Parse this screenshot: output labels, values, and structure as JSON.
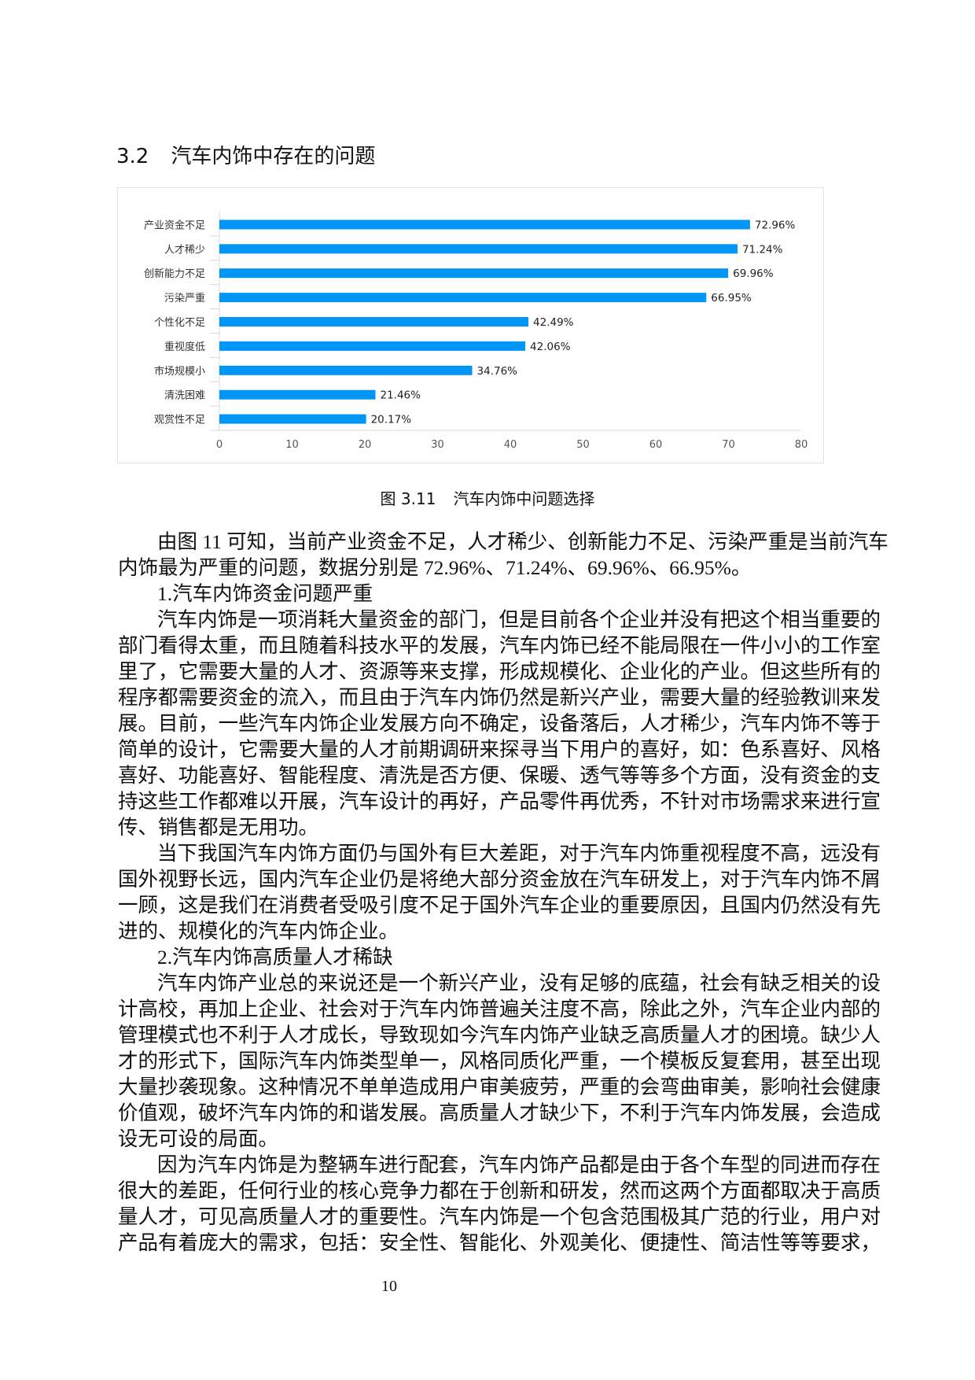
{
  "section": {
    "number": "3.2",
    "title": "汽车内饰中存在的问题"
  },
  "chart_data": {
    "type": "bar",
    "orientation": "horizontal",
    "categories": [
      "产业资金不足",
      "人才稀少",
      "创新能力不足",
      "污染严重",
      "个性化不足",
      "重视度低",
      "市场规模小",
      "清洗困难",
      "观赏性不足"
    ],
    "values": [
      72.96,
      71.24,
      69.96,
      66.95,
      42.49,
      42.06,
      34.76,
      21.46,
      20.17
    ],
    "data_labels": [
      "72.96%",
      "71.24%",
      "69.96%",
      "66.95%",
      "42.49%",
      "42.06%",
      "34.76%",
      "21.46%",
      "20.17%"
    ],
    "xlim": [
      0,
      80
    ],
    "x_ticks": [
      "0",
      "10",
      "20",
      "30",
      "40",
      "50",
      "60",
      "70",
      "80"
    ],
    "title": "",
    "xlabel": "",
    "ylabel": "",
    "grid": false,
    "bar_color": "#0096f5"
  },
  "caption": {
    "number": "图 3.11",
    "title": "汽车内饰中问题选择"
  },
  "paragraphs": [
    [
      "由图 11 可知，当前产业资金不足，人才稀少、创新能力不足、污染严重是当前汽车",
      "内饰最为严重的问题，数据分别是 72.96%、71.24%、69.96%、66.95%。"
    ],
    [
      "1.汽车内饰资金问题严重"
    ],
    [
      "汽车内饰是一项消耗大量资金的部门，但是目前各个企业并没有把这个相当重要的",
      "部门看得太重，而且随着科技水平的发展，汽车内饰已经不能局限在一件小小的工作室",
      "里了，它需要大量的人才、资源等来支撑，形成规模化、企业化的产业。但这些所有的",
      "程序都需要资金的流入，而且由于汽车内饰仍然是新兴产业，需要大量的经验教训来发",
      "展。目前，一些汽车内饰企业发展方向不确定，设备落后，人才稀少，汽车内饰不等于",
      "简单的设计，它需要大量的人才前期调研来探寻当下用户的喜好，如：色系喜好、风格",
      "喜好、功能喜好、智能程度、清洗是否方便、保暖、透气等等多个方面，没有资金的支",
      "持这些工作都难以开展，汽车设计的再好，产品零件再优秀，不针对市场需求来进行宣",
      "传、销售都是无用功。"
    ],
    [
      "当下我国汽车内饰方面仍与国外有巨大差距，对于汽车内饰重视程度不高，远没有",
      "国外视野长远，国内汽车企业仍是将绝大部分资金放在汽车研发上，对于汽车内饰不屑",
      "一顾，这是我们在消费者受吸引度不足于国外汽车企业的重要原因，且国内仍然没有先",
      "进的、规模化的汽车内饰企业。"
    ],
    [
      "2.汽车内饰高质量人才稀缺"
    ],
    [
      "汽车内饰产业总的来说还是一个新兴产业，没有足够的底蕴，社会有缺乏相关的设",
      "计高校，再加上企业、社会对于汽车内饰普遍关注度不高，除此之外，汽车企业内部的",
      "管理模式也不利于人才成长，导致现如今汽车内饰产业缺乏高质量人才的困境。缺少人",
      "才的形式下，国际汽车内饰类型单一，风格同质化严重，一个模板反复套用，甚至出现",
      "大量抄袭现象。这种情况不单单造成用户审美疲劳，严重的会弯曲审美，影响社会健康",
      "价值观，破坏汽车内饰的和谐发展。高质量人才缺少下，不利于汽车内饰发展，会造成",
      "设无可设的局面。"
    ],
    [
      "因为汽车内饰是为整辆车进行配套，汽车内饰产品都是由于各个车型的同进而存在",
      "很大的差距，任何行业的核心竞争力都在于创新和研发，然而这两个方面都取决于高质",
      "量人才，可见高质量人才的重要性。汽车内饰是一个包含范围极其广范的行业，用户对",
      "产品有着庞大的需求，包括：安全性、智能化、外观美化、便捷性、简洁性等等要求，"
    ]
  ],
  "open_last_paragraph": true,
  "page_number": "10"
}
